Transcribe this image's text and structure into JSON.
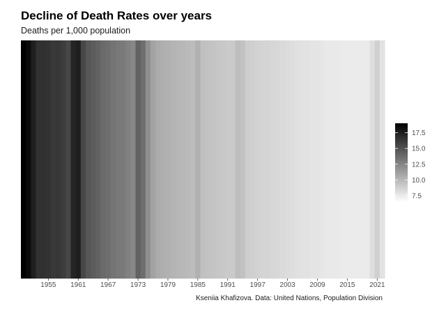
{
  "title": "Decline of Death Rates over years",
  "subtitle": "Deaths per 1,000 population",
  "caption": "Kseniia Khafizova. Data: United Nations, Population Division",
  "chart_data": {
    "type": "heatmap",
    "title": "Decline of Death Rates over years",
    "subtitle": "Deaths per 1,000 population",
    "xlabel": "",
    "ylabel": "",
    "x_ticks": [
      1955,
      1961,
      1967,
      1973,
      1979,
      1985,
      1991,
      1997,
      2003,
      2009,
      2015,
      2021
    ],
    "xlim": [
      1950,
      2022
    ],
    "color_scale": {
      "low": "#ffffff",
      "high": "#000000",
      "min": 6.5,
      "max": 19
    },
    "legend": {
      "position": "right",
      "ticks": [
        "17.5",
        "15.0",
        "12.5",
        "10.0",
        "7.5"
      ],
      "tick_values": [
        17.5,
        15,
        12.5,
        10,
        7.5
      ]
    },
    "x": [
      1950,
      1951,
      1952,
      1953,
      1954,
      1955,
      1956,
      1957,
      1958,
      1959,
      1960,
      1961,
      1962,
      1963,
      1964,
      1965,
      1966,
      1967,
      1968,
      1969,
      1970,
      1971,
      1972,
      1973,
      1974,
      1975,
      1976,
      1977,
      1978,
      1979,
      1980,
      1981,
      1982,
      1983,
      1984,
      1985,
      1986,
      1987,
      1988,
      1989,
      1990,
      1991,
      1992,
      1993,
      1994,
      1995,
      1996,
      1997,
      1998,
      1999,
      2000,
      2001,
      2002,
      2003,
      2004,
      2005,
      2006,
      2007,
      2008,
      2009,
      2010,
      2011,
      2012,
      2013,
      2014,
      2015,
      2016,
      2017,
      2018,
      2019,
      2020,
      2021,
      2022
    ],
    "values": [
      19.0,
      18.5,
      17.5,
      16.6,
      16.6,
      16.5,
      16.2,
      16.3,
      16.0,
      15.5,
      17.2,
      17.5,
      15.5,
      14.8,
      14.5,
      14.2,
      13.8,
      13.6,
      13.3,
      13.1,
      13.0,
      12.7,
      12.4,
      14.2,
      13.6,
      12.0,
      11.0,
      10.6,
      10.4,
      10.3,
      10.2,
      10.1,
      10.0,
      9.9,
      9.8,
      10.3,
      9.6,
      9.5,
      9.4,
      9.3,
      9.2,
      9.1,
      9.1,
      9.7,
      9.5,
      8.9,
      8.8,
      8.7,
      8.6,
      8.6,
      8.5,
      8.4,
      8.3,
      8.2,
      8.1,
      8.0,
      7.9,
      7.9,
      7.8,
      7.8,
      7.7,
      7.6,
      7.6,
      7.6,
      7.5,
      7.5,
      7.5,
      7.5,
      7.5,
      7.5,
      8.1,
      8.8,
      7.9
    ]
  }
}
